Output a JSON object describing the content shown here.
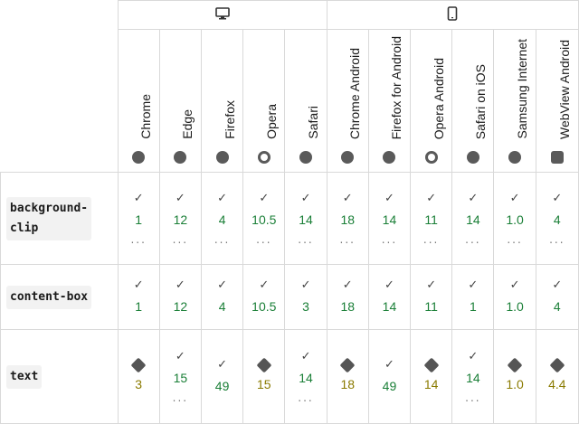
{
  "devices": {
    "desktop_icon": "desktop-icon",
    "mobile_icon": "mobile-icon"
  },
  "browsers": [
    {
      "label": "Chrome",
      "icon": "chrome-icon"
    },
    {
      "label": "Edge",
      "icon": "edge-icon"
    },
    {
      "label": "Firefox",
      "icon": "firefox-icon"
    },
    {
      "label": "Opera",
      "icon": "opera-icon"
    },
    {
      "label": "Safari",
      "icon": "safari-icon"
    },
    {
      "label": "Chrome Android",
      "icon": "chrome-icon"
    },
    {
      "label": "Firefox for Android",
      "icon": "firefox-icon"
    },
    {
      "label": "Opera Android",
      "icon": "opera-icon"
    },
    {
      "label": "Safari on iOS",
      "icon": "safari-icon"
    },
    {
      "label": "Samsung Internet",
      "icon": "samsung-icon"
    },
    {
      "label": "WebView Android",
      "icon": "android-icon"
    }
  ],
  "rows": [
    {
      "feature": "background-\nclip",
      "cells": [
        {
          "v": "1",
          "s": "y",
          "more": true
        },
        {
          "v": "12",
          "s": "y",
          "more": true
        },
        {
          "v": "4",
          "s": "y",
          "more": true
        },
        {
          "v": "10.5",
          "s": "y",
          "more": true
        },
        {
          "v": "14",
          "s": "y",
          "more": true
        },
        {
          "v": "18",
          "s": "y",
          "more": true
        },
        {
          "v": "14",
          "s": "y",
          "more": true
        },
        {
          "v": "11",
          "s": "y",
          "more": true
        },
        {
          "v": "14",
          "s": "y",
          "more": true
        },
        {
          "v": "1.0",
          "s": "y",
          "more": true
        },
        {
          "v": "4",
          "s": "y",
          "more": true
        }
      ]
    },
    {
      "feature": "content-box",
      "cells": [
        {
          "v": "1",
          "s": "y"
        },
        {
          "v": "12",
          "s": "y"
        },
        {
          "v": "4",
          "s": "y"
        },
        {
          "v": "10.5",
          "s": "y"
        },
        {
          "v": "3",
          "s": "y"
        },
        {
          "v": "18",
          "s": "y"
        },
        {
          "v": "14",
          "s": "y"
        },
        {
          "v": "11",
          "s": "y"
        },
        {
          "v": "1",
          "s": "y"
        },
        {
          "v": "1.0",
          "s": "y"
        },
        {
          "v": "4",
          "s": "y"
        }
      ]
    },
    {
      "feature": "text",
      "cells": [
        {
          "v": "3",
          "s": "p"
        },
        {
          "v": "15",
          "s": "y",
          "more": true
        },
        {
          "v": "49",
          "s": "y"
        },
        {
          "v": "15",
          "s": "p"
        },
        {
          "v": "14",
          "s": "y",
          "more": true
        },
        {
          "v": "18",
          "s": "p"
        },
        {
          "v": "49",
          "s": "y"
        },
        {
          "v": "14",
          "s": "p"
        },
        {
          "v": "14",
          "s": "y",
          "more": true
        },
        {
          "v": "1.0",
          "s": "p"
        },
        {
          "v": "4.4",
          "s": "p"
        }
      ]
    }
  ],
  "ui": {
    "check": "✓",
    "more": "..."
  }
}
